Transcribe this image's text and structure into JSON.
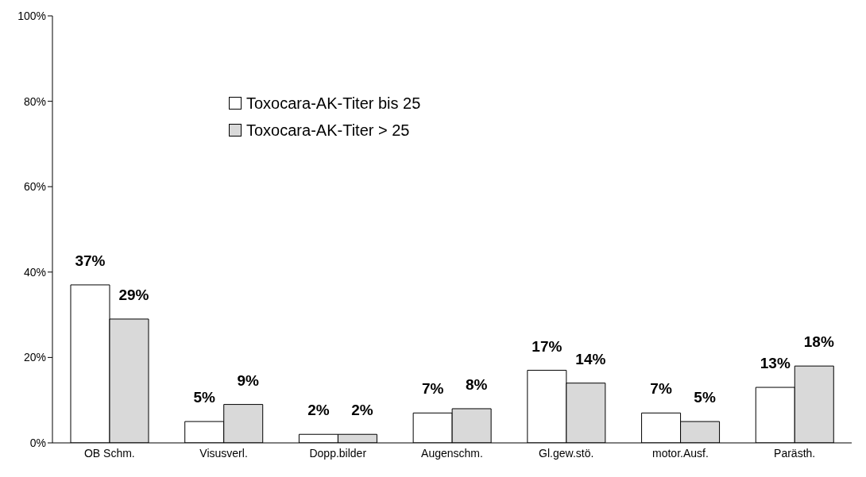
{
  "chart_data": {
    "type": "bar",
    "categories": [
      "OB Schm.",
      "Visusverl.",
      "Dopp.bilder",
      "Augenschm.",
      "Gl.gew.stö.",
      "motor.Ausf.",
      "Parästh."
    ],
    "series": [
      {
        "name": "Toxocara-AK-Titer bis 25",
        "color": "#ffffff",
        "values": [
          37,
          5,
          2,
          7,
          17,
          7,
          13
        ],
        "value_labels": [
          "37%",
          "5%",
          "2%",
          "7%",
          "17%",
          "7%",
          "13%"
        ]
      },
      {
        "name": "Toxocara-AK-Titer > 25",
        "color": "#d9d9d9",
        "values": [
          29,
          9,
          2,
          8,
          14,
          5,
          18
        ],
        "value_labels": [
          "29%",
          "9%",
          "2%",
          "8%",
          "14%",
          "5%",
          "18%"
        ]
      }
    ],
    "ylim": [
      0,
      100
    ],
    "yticks": [
      {
        "value": 0,
        "label": "0%"
      },
      {
        "value": 20,
        "label": "20%"
      },
      {
        "value": 40,
        "label": "40%"
      },
      {
        "value": 60,
        "label": "60%"
      },
      {
        "value": 80,
        "label": "80%"
      },
      {
        "value": 100,
        "label": "100%"
      }
    ],
    "grid": false,
    "legend": "top"
  }
}
